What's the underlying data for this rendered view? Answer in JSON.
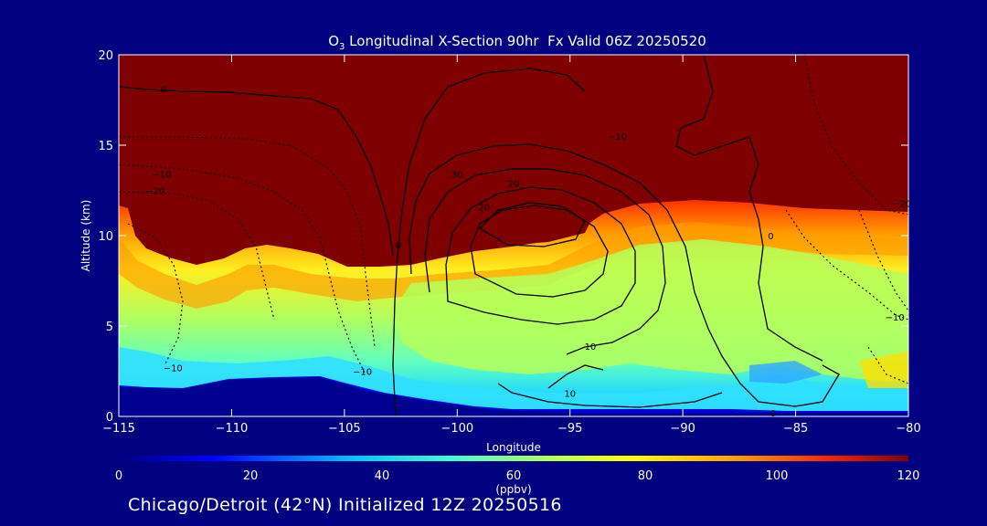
{
  "chart_data": {
    "type": "heatmap",
    "title": "O3 Longitudinal X-Section 90hr  Fx Valid 06Z 20250520",
    "title_species": "O",
    "title_subscript": "3",
    "title_rest": " Longitudinal X-Section 90hr  Fx Valid 06Z 20250520",
    "xlabel": "Longitude",
    "ylabel": "Altitude (km)",
    "xlim": [
      -115,
      -80
    ],
    "ylim": [
      0,
      20
    ],
    "x_ticks": [
      -115,
      -110,
      -105,
      -100,
      -95,
      -90,
      -85,
      -80
    ],
    "y_ticks": [
      0,
      5,
      10,
      15,
      20
    ],
    "x_tick_labels": [
      "−115",
      "−110",
      "−105",
      "−100",
      "−95",
      "−90",
      "−85",
      "−80"
    ],
    "y_tick_labels": [
      "0",
      "5",
      "10",
      "15",
      "20"
    ],
    "colorbar": {
      "range": [
        0,
        120
      ],
      "ticks": [
        0,
        20,
        40,
        60,
        80,
        100,
        120
      ],
      "tick_labels": [
        "0",
        "20",
        "40",
        "60",
        "80",
        "100",
        "120"
      ],
      "unit_label": "(ppbv)"
    },
    "contour_labels": [
      {
        "text": "0",
        "lon": -113,
        "alt": 18.1
      },
      {
        "text": "−10",
        "lon": -113.1,
        "alt": 13.4
      },
      {
        "text": "−20",
        "lon": -113.4,
        "alt": 12.5
      },
      {
        "text": "−10",
        "lon": -112.6,
        "alt": 2.7
      },
      {
        "text": "−10",
        "lon": -104.2,
        "alt": 2.5
      },
      {
        "text": "0",
        "lon": -102.6,
        "alt": 9.5
      },
      {
        "text": "10",
        "lon": -94.1,
        "alt": 3.9
      },
      {
        "text": "10",
        "lon": -95,
        "alt": 1.3
      },
      {
        "text": "20",
        "lon": -98.8,
        "alt": 11.6
      },
      {
        "text": "30",
        "lon": -100,
        "alt": 13.4
      },
      {
        "text": "20",
        "lon": -97.5,
        "alt": 12.9
      },
      {
        "text": "−10",
        "lon": -92.9,
        "alt": 15.5
      },
      {
        "text": "0",
        "lon": -86.1,
        "alt": 10
      },
      {
        "text": "0",
        "lon": -86,
        "alt": 0.2
      },
      {
        "text": "−10",
        "lon": -80.6,
        "alt": 5.5
      },
      {
        "text": "−20",
        "lon": -80.3,
        "alt": 11.8
      }
    ]
  },
  "footer": {
    "caption": "Chicago/Detroit (42°N) Initialized 12Z 20250516"
  }
}
